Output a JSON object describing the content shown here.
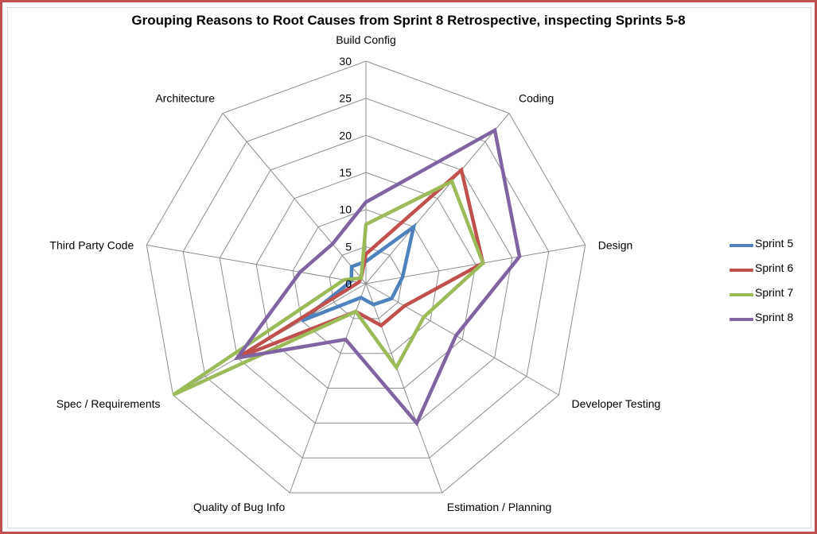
{
  "chart_data": {
    "type": "radar",
    "title": "Grouping Reasons to Root Causes from Sprint 8 Retrospective, inspecting Sprints 5-8",
    "categories": [
      "Build Config",
      "Coding",
      "Design",
      "Developer Testing",
      "Estimation / Planning",
      "Quality of Bug Info",
      "Spec / Requirements",
      "Third Party Code",
      "Architecture"
    ],
    "rlim": [
      0,
      30
    ],
    "ticks": [
      "0",
      "5",
      "10",
      "15",
      "20",
      "25",
      "30"
    ],
    "legend_position": "right",
    "series": [
      {
        "name": "Sprint 5",
        "color": "#4f81bd",
        "values": [
          3,
          10,
          5,
          4,
          3,
          2,
          10,
          2,
          3
        ]
      },
      {
        "name": "Sprint 6",
        "color": "#c0504d",
        "values": [
          4,
          20,
          16,
          6,
          6,
          4,
          20,
          1,
          1
        ]
      },
      {
        "name": "Sprint 7",
        "color": "#9bbb59",
        "values": [
          8,
          18,
          16,
          9,
          12,
          4,
          30,
          3,
          1
        ]
      },
      {
        "name": "Sprint 8",
        "color": "#8064a2",
        "values": [
          11,
          27,
          21,
          14,
          20,
          8,
          20,
          9,
          7
        ]
      }
    ]
  }
}
